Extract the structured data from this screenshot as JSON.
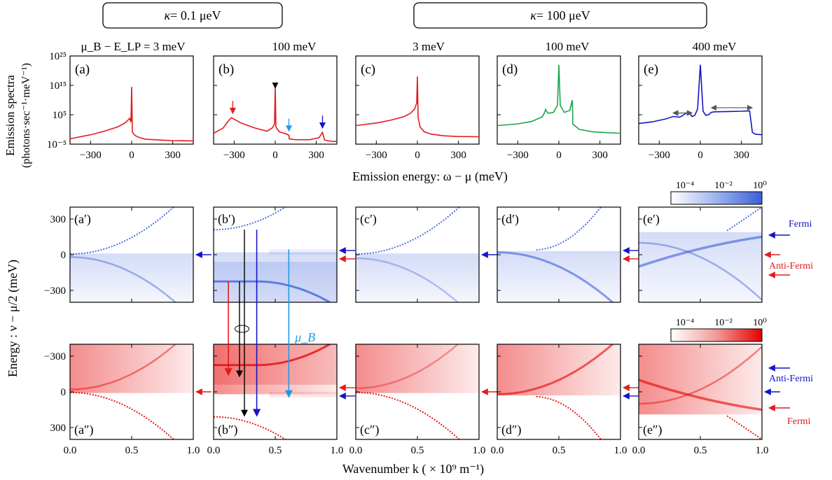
{
  "figure": {
    "headers": [
      {
        "prefix": "κ",
        "text": "= 0.1 μeV"
      },
      {
        "prefix": "κ",
        "text": "= 100 μeV"
      }
    ],
    "row_a_label": "μ_B − E_LP = 3 meV",
    "column_labels": [
      "100 meV",
      "3 meV",
      "100 meV",
      "400 meV"
    ],
    "spectra_ylabel_1": "Emission spectra",
    "spectra_ylabel_2": "(photons·sec⁻¹·meV⁻¹)",
    "spectra_xlabel": "Emission energy: ω − μ (meV)",
    "energy_ylabel": "Energy : ν − μ/2  (meV)",
    "k_xlabel": "Wavenumber k ( × 10⁹ m⁻¹)",
    "annotations": {
      "fermi_blue": "Fermi",
      "antifermi_red": "Anti-Fermi",
      "antifermi_blue": "Anti-Fermi",
      "fermi_red": "Fermi",
      "mu_b": "μ_B"
    }
  },
  "colors": {
    "red": "#e41a1c",
    "green": "#1aa64b",
    "blue": "#1414c8",
    "light_blue": "#1e9be6",
    "map_blue": "#3a5fd9",
    "map_red": "#e60000"
  },
  "chart_data": [
    {
      "type": "line",
      "panel": "(a)",
      "color": "red",
      "xlim": [
        -450,
        450
      ],
      "ylim": [
        -5,
        25
      ],
      "ylog": true,
      "xticks": [
        "−300",
        "0",
        "300"
      ],
      "yticks": [
        "10²⁵",
        "10¹⁵",
        "10⁵",
        "10⁻⁵"
      ],
      "x": [
        -450,
        -300,
        -200,
        -100,
        -50,
        -30,
        -15,
        -5,
        0,
        5,
        15,
        30,
        60,
        100,
        200,
        300,
        450
      ],
      "y": [
        -3.2,
        -1.8,
        -0.6,
        0.9,
        2.2,
        3.0,
        3.8,
        2.5,
        14.5,
        -0.8,
        -1.6,
        -2.2,
        -2.8,
        -3.3,
        -3.6,
        -3.8,
        -3.9
      ]
    },
    {
      "type": "line",
      "panel": "(b)",
      "color": "red",
      "xlim": [
        -450,
        450
      ],
      "ylim": [
        -5,
        25
      ],
      "ylog": true,
      "xticks": [
        "−300",
        "0",
        "300"
      ],
      "yticks": [],
      "x": [
        -450,
        -380,
        -340,
        -320,
        -300,
        -250,
        -150,
        -60,
        -20,
        -5,
        0,
        5,
        30,
        80,
        100,
        102,
        150,
        250,
        320,
        345,
        360,
        400,
        450
      ],
      "y": [
        -1.3,
        0.5,
        3.0,
        4.0,
        3.5,
        2.2,
        0.5,
        -0.6,
        0.6,
        1.8,
        14.5,
        0.8,
        -0.8,
        -1.5,
        -2.0,
        -3.2,
        -3.5,
        -3.5,
        -2.8,
        -1.0,
        -3.6,
        -4.0,
        -4.1
      ],
      "markers": [
        {
          "x": -310,
          "color": "red"
        },
        {
          "x": 0,
          "color": "black"
        },
        {
          "x": 100,
          "color": "light_blue"
        },
        {
          "x": 345,
          "color": "blue"
        }
      ]
    },
    {
      "type": "line",
      "panel": "(c)",
      "color": "red",
      "xlim": [
        -450,
        450
      ],
      "ylim": [
        -5,
        25
      ],
      "ylog": true,
      "xticks": [
        "−300",
        "0",
        "300"
      ],
      "yticks": [],
      "x": [
        -450,
        -300,
        -200,
        -100,
        -50,
        -20,
        -5,
        0,
        5,
        20,
        50,
        100,
        200,
        300,
        450
      ],
      "y": [
        1.3,
        2.2,
        3.1,
        4.3,
        5.5,
        7.0,
        9.0,
        18.0,
        4.0,
        0.8,
        -0.8,
        -1.6,
        -2.2,
        -2.4,
        -2.5
      ]
    },
    {
      "type": "line",
      "panel": "(d)",
      "color": "green",
      "xlim": [
        -450,
        450
      ],
      "ylim": [
        -5,
        25
      ],
      "ylog": true,
      "xticks": [
        "−300",
        "0",
        "300"
      ],
      "yticks": [],
      "x": [
        -450,
        -300,
        -200,
        -120,
        -100,
        -98,
        -80,
        -40,
        -10,
        0,
        10,
        40,
        80,
        98,
        100,
        102,
        150,
        250,
        350,
        450
      ],
      "y": [
        1.3,
        1.9,
        2.7,
        4.3,
        6.2,
        6.8,
        5.5,
        5.8,
        8.2,
        22.0,
        8.2,
        5.8,
        6.5,
        10.0,
        6.5,
        1.8,
        0.0,
        -0.8,
        -1.1,
        -1.3
      ],
      "annotations": []
    },
    {
      "type": "line",
      "panel": "(e)",
      "color": "blue",
      "xlim": [
        -450,
        450
      ],
      "ylim": [
        -5,
        25
      ],
      "ylog": true,
      "xticks": [
        "−300",
        "0",
        "300"
      ],
      "yticks": [],
      "x": [
        -450,
        -350,
        -250,
        -200,
        -150,
        -100,
        -80,
        -60,
        -40,
        -20,
        0,
        20,
        40,
        60,
        80,
        100,
        200,
        300,
        360,
        380,
        400,
        450
      ],
      "y": [
        2.0,
        2.6,
        3.6,
        4.4,
        4.2,
        5.6,
        5.4,
        4.4,
        4.8,
        7.0,
        22.0,
        6.2,
        4.8,
        5.0,
        5.8,
        6.0,
        6.1,
        6.2,
        6.3,
        -1.0,
        -1.6,
        -1.8
      ],
      "arrows": [
        {
          "x1": -200,
          "x2": -60,
          "y": 5.6
        },
        {
          "x1": 80,
          "x2": 380,
          "y": 7.4
        }
      ]
    },
    {
      "type": "heatmap",
      "panel": "(a′)",
      "colormap": "blue",
      "xlim": [
        0,
        1
      ],
      "ylim": [
        -400,
        400
      ],
      "colorbar_ticks": [
        "10⁻⁴",
        "10⁻²",
        "10⁰"
      ]
    },
    {
      "type": "heatmap",
      "panel": "(b′)",
      "colormap": "blue",
      "xlim": [
        0,
        1
      ],
      "ylim": [
        -400,
        400
      ]
    },
    {
      "type": "heatmap",
      "panel": "(c′)",
      "colormap": "blue",
      "xlim": [
        0,
        1
      ],
      "ylim": [
        -400,
        400
      ]
    },
    {
      "type": "heatmap",
      "panel": "(d′)",
      "colormap": "blue",
      "xlim": [
        0,
        1
      ],
      "ylim": [
        -400,
        400
      ]
    },
    {
      "type": "heatmap",
      "panel": "(e′)",
      "colormap": "blue",
      "xlim": [
        0,
        1
      ],
      "ylim": [
        -400,
        400
      ]
    },
    {
      "type": "heatmap",
      "panel": "(a″)",
      "colormap": "red",
      "xlim": [
        0,
        1
      ],
      "ylim": [
        400,
        -400
      ],
      "colorbar_ticks": [
        "10⁻⁴",
        "10⁻²",
        "10⁰"
      ]
    },
    {
      "type": "heatmap",
      "panel": "(b″)",
      "colormap": "red",
      "xlim": [
        0,
        1
      ],
      "ylim": [
        400,
        -400
      ]
    },
    {
      "type": "heatmap",
      "panel": "(c″)",
      "colormap": "red",
      "xlim": [
        0,
        1
      ],
      "ylim": [
        400,
        -400
      ]
    },
    {
      "type": "heatmap",
      "panel": "(d″)",
      "colormap": "red",
      "xlim": [
        0,
        1
      ],
      "ylim": [
        400,
        -400
      ]
    },
    {
      "type": "heatmap",
      "panel": "(e″)",
      "colormap": "red",
      "xlim": [
        0,
        1
      ],
      "ylim": [
        400,
        -400
      ]
    }
  ],
  "heatmap_ticks": {
    "y_blue": [
      "300",
      "0",
      "−300"
    ],
    "y_red": [
      "−300",
      "0",
      "300"
    ],
    "x": [
      "0.0",
      "0.5",
      "1.0"
    ]
  }
}
